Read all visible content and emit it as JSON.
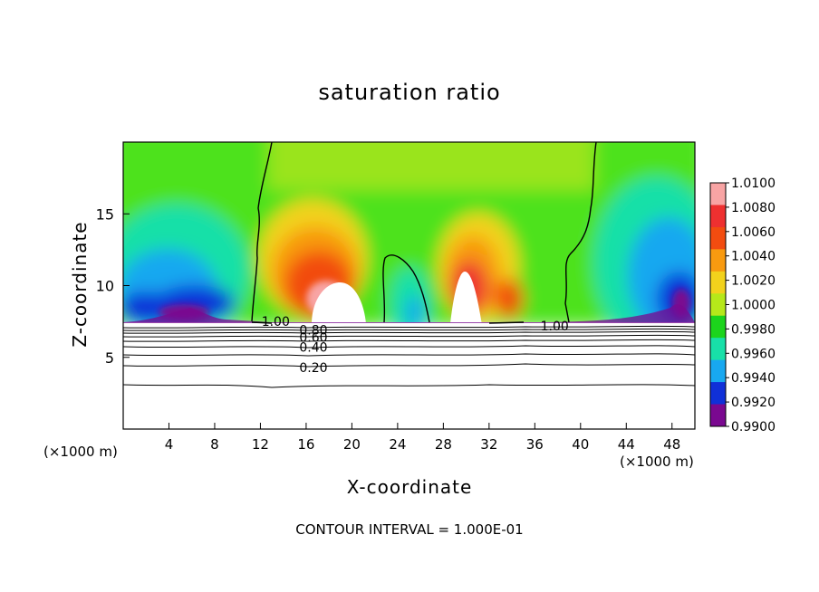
{
  "chart_data": {
    "type": "heatmap",
    "title": "saturation ratio",
    "xlabel": "X-coordinate",
    "ylabel": "Z-coordinate",
    "x_unit_label": "(×1000 m)",
    "y_unit_label": "(×1000 m)",
    "xlim": [
      0,
      50
    ],
    "ylim": [
      0,
      20
    ],
    "x_ticks": [
      4,
      8,
      12,
      16,
      20,
      24,
      28,
      32,
      36,
      40,
      44,
      48
    ],
    "y_ticks": [
      5,
      10,
      15
    ],
    "colorbar": {
      "levels": [
        "1.0100",
        "1.0080",
        "1.0060",
        "1.0040",
        "1.0020",
        "1.0000",
        "0.9980",
        "0.9960",
        "0.9940",
        "0.9920",
        "0.9900"
      ],
      "colors": [
        "#f8a4a4",
        "#ee3030",
        "#f24c10",
        "#f89a10",
        "#f2d21c",
        "#b6e81a",
        "#1cd41c",
        "#18e0a8",
        "#18a8f0",
        "#1030d8",
        "#7a0890"
      ]
    },
    "contour_labels": [
      {
        "text": "1.00",
        "x": 12.1,
        "y": 7.5
      },
      {
        "text": "1.00",
        "x": 36.5,
        "y": 7.2
      },
      {
        "text": "0.80",
        "x": 15.4,
        "y": 6.9
      },
      {
        "text": "0.60",
        "x": 15.4,
        "y": 6.4
      },
      {
        "text": "0.40",
        "x": 15.4,
        "y": 5.7
      },
      {
        "text": "0.20",
        "x": 15.4,
        "y": 4.3
      }
    ],
    "footer": "CONTOUR INTERVAL = 1.000E-01"
  }
}
